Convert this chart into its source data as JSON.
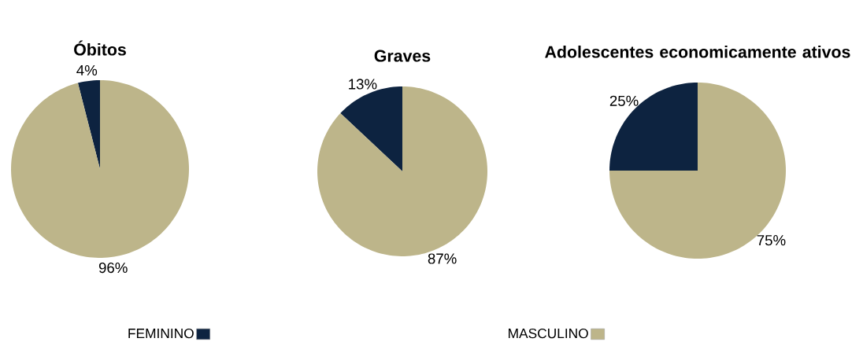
{
  "chart_data": [
    {
      "type": "pie",
      "title": "Óbitos",
      "categories": [
        "FEMININO",
        "MASCULINO"
      ],
      "values": [
        4,
        96
      ],
      "value_labels": [
        "4%",
        "96%"
      ],
      "colors": [
        "#0d2340",
        "#bdb58a"
      ],
      "legend": "bottom"
    },
    {
      "type": "pie",
      "title": "Graves",
      "categories": [
        null,
        null
      ],
      "values": [
        13,
        87
      ],
      "value_labels": [
        "13%",
        "87%"
      ],
      "colors": [
        "#0d2340",
        "#bdb58a"
      ]
    },
    {
      "type": "pie",
      "title": "Adolescentes economicamente ativos",
      "categories": [
        null,
        null
      ],
      "values": [
        25,
        75
      ],
      "value_labels": [
        "25%",
        "75%"
      ],
      "colors": [
        "#0d2340",
        "#bdb58a"
      ]
    }
  ]
}
